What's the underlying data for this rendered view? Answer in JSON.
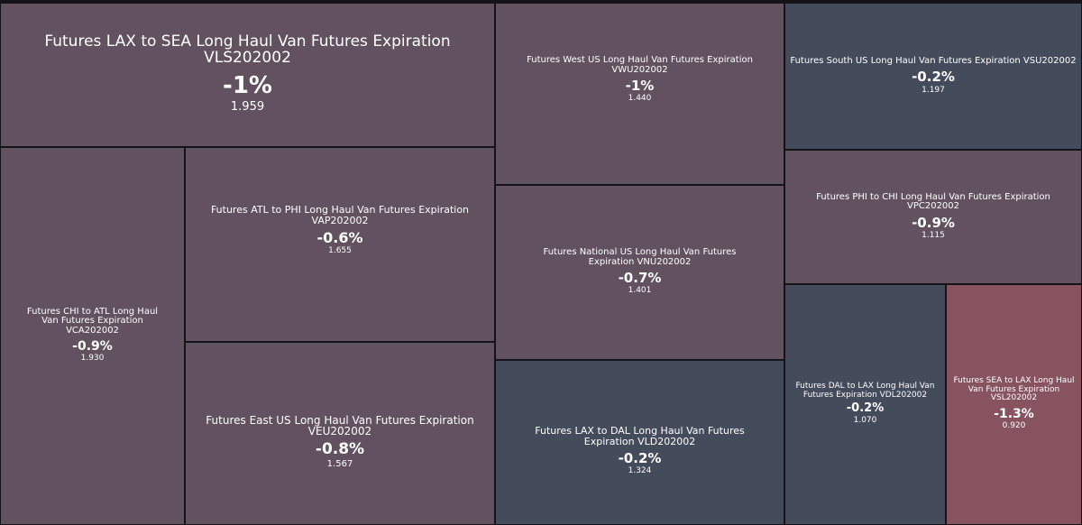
{
  "colors": {
    "negative_small": "#444b5b",
    "negative_medium": "#625260",
    "negative_large": "#86535f"
  },
  "chart_data": {
    "type": "treemap",
    "items": [
      {
        "name": "Futures LAX to SEA Long Haul Van Futures Expiration VLS202002",
        "change": "-1%",
        "value": 1.959,
        "color": "#625260"
      },
      {
        "name": "Futures CHI to ATL Long Haul Van Futures Expiration VCA202002",
        "change": "-0.9%",
        "value": 1.93,
        "color": "#625260"
      },
      {
        "name": "Futures ATL to PHI Long Haul Van Futures Expiration VAP202002",
        "change": "-0.6%",
        "value": 1.655,
        "color": "#625260"
      },
      {
        "name": "Futures East US Long Haul Van Futures Expiration VEU202002",
        "change": "-0.8%",
        "value": 1.567,
        "color": "#625260"
      },
      {
        "name": "Futures West US Long Haul Van Futures Expiration VWU202002",
        "change": "-1%",
        "value": 1.44,
        "color": "#625260"
      },
      {
        "name": "Futures National US Long Haul Van Futures Expiration VNU202002",
        "change": "-0.7%",
        "value": 1.401,
        "color": "#625260"
      },
      {
        "name": "Futures LAX to DAL Long Haul Van Futures Expiration VLD202002",
        "change": "-0.2%",
        "value": 1.324,
        "color": "#444b5b"
      },
      {
        "name": "Futures South US Long Haul Van Futures Expiration VSU202002",
        "change": "-0.2%",
        "value": 1.197,
        "color": "#444b5b"
      },
      {
        "name": "Futures PHI to CHI Long Haul Van Futures Expiration VPC202002",
        "change": "-0.9%",
        "value": 1.115,
        "color": "#625260"
      },
      {
        "name": "Futures DAL to LAX Long Haul Van Futures Expiration VDL202002",
        "change": "-0.2%",
        "value": 1.07,
        "color": "#444b5b"
      },
      {
        "name": "Futures SEA to LAX Long Haul Van Futures Expiration VSL202002",
        "change": "-1.3%",
        "value": 0.92,
        "color": "#86535f"
      }
    ]
  }
}
